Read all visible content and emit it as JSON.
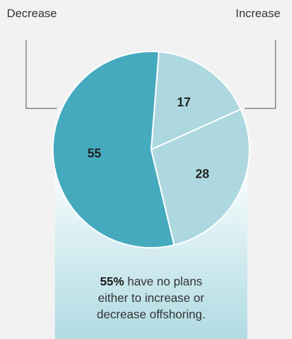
{
  "chart_data": {
    "type": "pie",
    "categories": [
      "Increase",
      "Decrease",
      "No plans"
    ],
    "values": [
      28,
      17,
      55
    ],
    "data_labels": [
      "28",
      "17",
      "55"
    ],
    "colors": [
      "#add8e0",
      "#add8e0",
      "#46aabf"
    ],
    "legend": "callout-labels"
  },
  "labels": {
    "left": "Decrease",
    "right": "Increase"
  },
  "note": {
    "highlight": "55%",
    "line1_rest": " have no plans",
    "line2": "either to increase or",
    "line3": "decrease offshoring."
  },
  "colors": {
    "background": "#f2f2f2",
    "slice_light": "#add8e0",
    "slice_dark": "#46aabf",
    "stroke": "#ffffff",
    "leader": "#4a4a4a"
  }
}
